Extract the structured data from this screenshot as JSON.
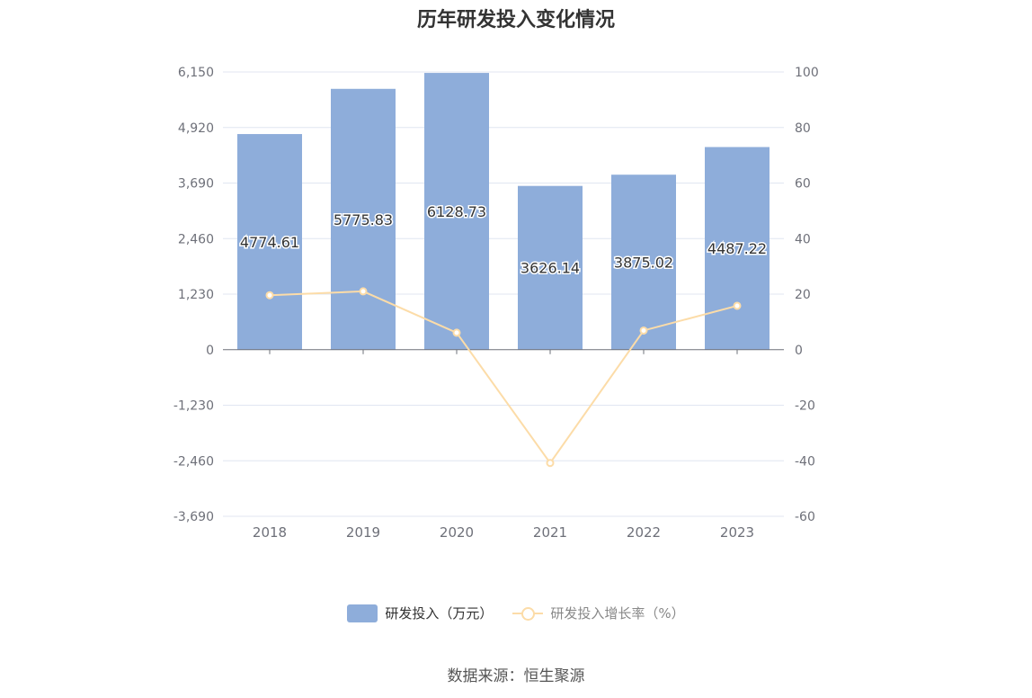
{
  "chart_data": {
    "type": "bar",
    "title": "历年研发投入变化情况",
    "categories": [
      "2018",
      "2019",
      "2020",
      "2021",
      "2022",
      "2023"
    ],
    "series": [
      {
        "name": "研发投入（万元）",
        "type": "bar",
        "axis": "left",
        "color": "#8eadda",
        "values": [
          4774.61,
          5775.83,
          6128.73,
          3626.14,
          3875.02,
          4487.22
        ],
        "labels": [
          "4774.61",
          "5775.83",
          "6128.73",
          "3626.14",
          "3875.02",
          "4487.22"
        ]
      },
      {
        "name": "研发投入增长率（%）",
        "type": "line",
        "axis": "right",
        "color": "#fcdca8",
        "values": [
          19.6,
          21.0,
          6.1,
          -40.8,
          6.9,
          15.8
        ]
      }
    ],
    "y_left": {
      "ylim": [
        -3690,
        6150
      ],
      "ticks": [
        6150,
        4920,
        3690,
        2460,
        1230,
        0,
        -1230,
        -2460,
        -3690
      ],
      "tick_labels": [
        "6,150",
        "4,920",
        "3,690",
        "2,460",
        "1,230",
        "0",
        "-1,230",
        "-2,460",
        "-3,690"
      ]
    },
    "y_right": {
      "ylim": [
        -60,
        100
      ],
      "ticks": [
        100,
        80,
        60,
        40,
        20,
        0,
        -20,
        -40,
        -60
      ],
      "tick_labels": [
        "100",
        "80",
        "60",
        "40",
        "20",
        "0",
        "-20",
        "-40",
        "-60"
      ]
    },
    "grid": true,
    "legend_position": "bottom"
  },
  "source_text": "数据来源：恒生聚源"
}
